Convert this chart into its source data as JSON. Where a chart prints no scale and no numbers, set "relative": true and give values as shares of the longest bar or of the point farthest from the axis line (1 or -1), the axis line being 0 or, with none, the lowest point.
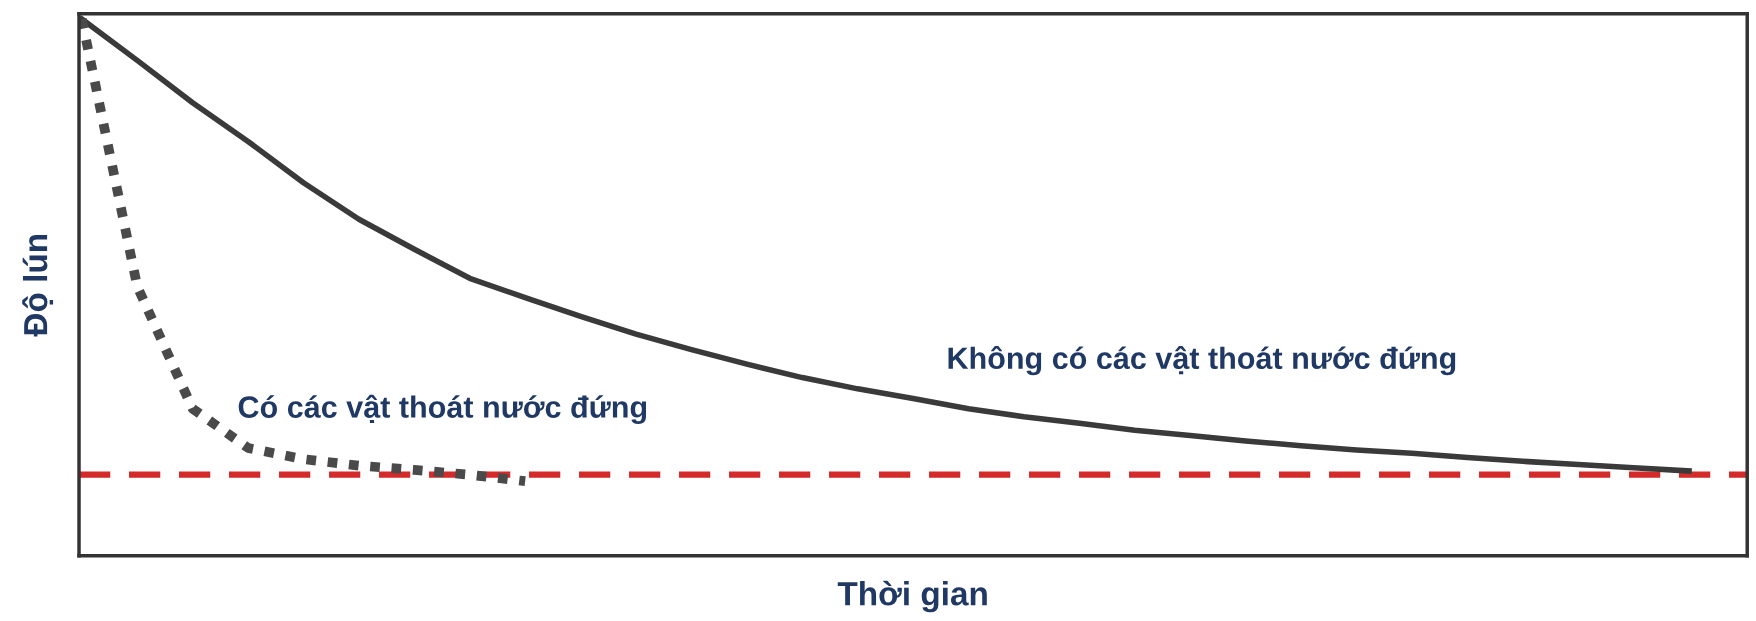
{
  "chart_data": {
    "type": "line",
    "xlabel": "Thời gian",
    "ylabel": "Độ lún",
    "relative": true,
    "tick_labels": false,
    "marker": "none",
    "categories": [
      null,
      null,
      null,
      null,
      null,
      null,
      null,
      null,
      null,
      null,
      null,
      null,
      null,
      null,
      null,
      null,
      null,
      null,
      null,
      null,
      null,
      null,
      null,
      null,
      null,
      null,
      null,
      null,
      null,
      null,
      null
    ],
    "series": [
      {
        "name": "Không có các vật thoát nước đứng",
        "color": "#3a3a3a",
        "line_style": "solid",
        "values": [
          1.0,
          0.923,
          0.844,
          0.772,
          0.695,
          0.627,
          0.571,
          0.517,
          0.481,
          0.446,
          0.413,
          0.384,
          0.357,
          0.332,
          0.311,
          0.293,
          0.274,
          0.259,
          0.247,
          0.234,
          0.224,
          0.214,
          0.205,
          0.197,
          0.191,
          0.183,
          0.176,
          0.17,
          0.164,
          0.158,
          null
        ]
      },
      {
        "name": "Có các vật thoát nước đứng",
        "color": "#4a4a4a",
        "line_style": "dotted",
        "values": [
          1.0,
          0.502,
          0.274,
          0.201,
          0.18,
          0.168,
          0.16,
          0.151,
          0.139,
          null,
          null,
          null,
          null,
          null,
          null,
          null,
          null,
          null,
          null,
          null,
          null,
          null,
          null,
          null,
          null,
          null,
          null,
          null,
          null,
          null,
          null
        ]
      }
    ],
    "ref_lines": [
      {
        "axis": "y",
        "value": 0.151,
        "color": "#d42a2a",
        "line_style": "dashed"
      }
    ]
  }
}
